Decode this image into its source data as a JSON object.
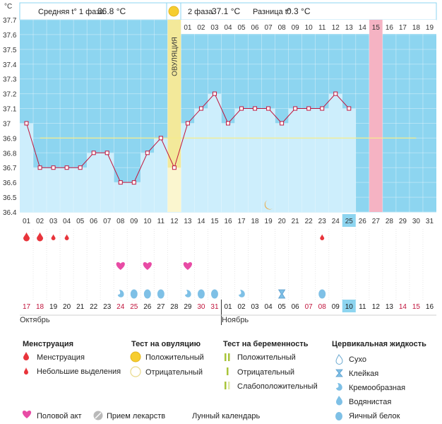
{
  "chart_data": {
    "type": "bar",
    "ylabel": "°C",
    "ylim": [
      36.4,
      37.7
    ],
    "yticks": [
      "37.7",
      "37.6",
      "37.5",
      "37.4",
      "37.3",
      "37.2",
      "37.1",
      "37",
      "36.9",
      "36.8",
      "36.7",
      "36.6",
      "36.5",
      "36.4"
    ],
    "x": [
      "01",
      "02",
      "03",
      "04",
      "05",
      "06",
      "07",
      "08",
      "09",
      "10",
      "11",
      "12",
      "13",
      "14",
      "15",
      "16",
      "17",
      "18",
      "19",
      "20",
      "21",
      "22",
      "23",
      "24",
      "25",
      "26",
      "27",
      "28",
      "29",
      "30",
      "31"
    ],
    "values": [
      37.0,
      36.7,
      36.7,
      36.7,
      36.7,
      36.8,
      36.8,
      36.6,
      36.6,
      36.8,
      36.9,
      36.7,
      37.0,
      37.1,
      37.2,
      37.0,
      37.1,
      37.1,
      37.1,
      37.0,
      37.1,
      37.1,
      37.1,
      37.2,
      37.1,
      null,
      null,
      null,
      null,
      null,
      null
    ],
    "coverline": 36.9,
    "today_index": 24,
    "phase2_labels": [
      "01",
      "02",
      "03",
      "04",
      "05",
      "06",
      "07",
      "08",
      "09",
      "10",
      "11",
      "12",
      "13",
      "14",
      "15",
      "16",
      "17",
      "18",
      "19"
    ],
    "phase2_highlight": "15",
    "ovulation_label": "ОВУЛЯЦИЯ",
    "ovulation_index": 11,
    "moon_index": 18,
    "header": {
      "phase1_text": "Средняя t° 1 фаза",
      "phase1_value": "36.8 °C",
      "phase2_text": "2 фаза",
      "phase2_value": "37.1 °C",
      "diff_text": "Разница t°",
      "diff_value": "0.3 °C"
    },
    "menstruation": [
      "big",
      "big",
      "small",
      "small",
      "",
      "",
      "",
      "",
      "",
      "",
      "",
      "",
      "",
      "",
      "",
      "",
      "",
      "",
      "",
      "",
      "",
      "",
      "small",
      "",
      "",
      "",
      "",
      "",
      "",
      "",
      ""
    ],
    "intercourse": [
      8,
      10,
      13
    ],
    "cervical": [
      "",
      "",
      "",
      "",
      "",
      "",
      "",
      "",
      "",
      "",
      "",
      "",
      "",
      "",
      "",
      "",
      "",
      "",
      "",
      "",
      "",
      "",
      "",
      "",
      "",
      "",
      "",
      "",
      "",
      "",
      ""
    ],
    "calendar": [
      "17",
      "18",
      "19",
      "20",
      "21",
      "22",
      "23",
      "24",
      "25",
      "26",
      "27",
      "28",
      "29",
      "30",
      "31",
      "01",
      "02",
      "03",
      "04",
      "05",
      "06",
      "07",
      "08",
      "09",
      "10",
      "11",
      "12",
      "13",
      "14",
      "15",
      "16"
    ],
    "calendar_red": [
      0,
      1,
      7,
      8,
      13,
      14,
      21,
      22,
      28,
      29
    ],
    "calendar_today": 24,
    "month_left": "Октябрь",
    "month_right": "Ноябрь",
    "colors": {
      "sky": "#8dd5f0",
      "bar": "#cdeefc",
      "ovulation": "#f3e99a",
      "pink": "#f5b3c3",
      "line": "#c0143c"
    }
  },
  "cervical_icons": [
    {
      "day": 8,
      "type": "creamy"
    },
    {
      "day": 9,
      "type": "eggwhite"
    },
    {
      "day": 10,
      "type": "eggwhite"
    },
    {
      "day": 11,
      "type": "eggwhite"
    },
    {
      "day": 13,
      "type": "creamy"
    },
    {
      "day": 14,
      "type": "eggwhite"
    },
    {
      "day": 15,
      "type": "eggwhite"
    },
    {
      "day": 17,
      "type": "creamy"
    },
    {
      "day": 20,
      "type": "sticky"
    },
    {
      "day": 23,
      "type": "eggwhite"
    }
  ],
  "legend": {
    "menstruation_title": "Менструация",
    "menstruation_big": "Менструация",
    "menstruation_small": "Небольшие выделения",
    "ovulation_title": "Тест на овуляцию",
    "ovulation_pos": "Положительный",
    "ovulation_neg": "Отрицательный",
    "pregnancy_title": "Тест на беременность",
    "pregnancy_pos": "Положительный",
    "pregnancy_neg": "Отрицательный",
    "pregnancy_weak": "Слабоположительный",
    "cervical_title": "Цервикальная жидкость",
    "cervical_dry": "Сухо",
    "cervical_sticky": "Клейкая",
    "cervical_creamy": "Кремообразная",
    "cervical_watery": "Водянистая",
    "cervical_eggwhite": "Яичный белок",
    "intercourse": "Половой акт",
    "medicine": "Прием лекарств",
    "lunar": "Лунный календарь"
  }
}
